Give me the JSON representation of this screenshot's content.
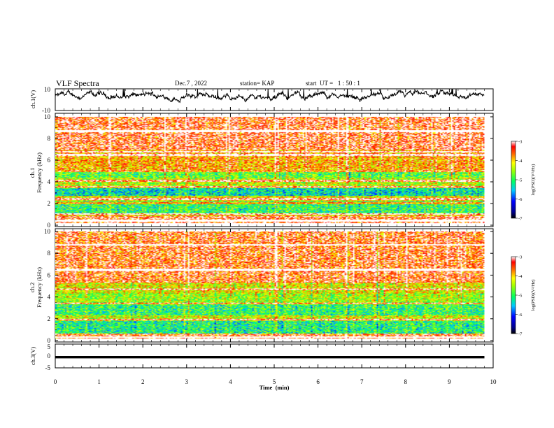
{
  "header": {
    "title": "VLF Spectra",
    "date": "Dec.7 , 2022",
    "station": "station= KAP",
    "start": "start  UT =   1 : 50 : 1"
  },
  "chart_data": [
    {
      "type": "line",
      "panel": "ch1-waveform",
      "ylabel": "ch.1(V)",
      "ylim": [
        -10,
        10
      ],
      "yticks": [
        "10",
        "-10"
      ],
      "xlim": [
        0,
        10
      ],
      "x_end": 9.8,
      "description_values": "noisy waveform roughly between -3 V and 10 V",
      "grid": false
    },
    {
      "type": "heatmap",
      "panel": "ch1-spectrogram",
      "ylabel_line1": "ch.1",
      "ylabel_line2": "Frequency (kHz)",
      "ylim": [
        0,
        10
      ],
      "yticks": [
        "0",
        "2",
        "4",
        "6",
        "8",
        "10"
      ],
      "xlim": [
        0,
        10
      ],
      "x_end": 9.8,
      "colorbar": {
        "label": "log(PSD)(V²/Hz)",
        "ticks": [
          "-3",
          "-4",
          "-5",
          "-6",
          "-7"
        ],
        "range": [
          -7,
          -3
        ]
      },
      "bands_khz": [
        {
          "from": 0,
          "to": 0.8,
          "level": -3.3
        },
        {
          "from": 0.8,
          "to": 1.1,
          "level": -4.0
        },
        {
          "from": 1.1,
          "to": 2.2,
          "level": -5.0
        },
        {
          "from": 2.2,
          "to": 2.7,
          "level": -4.2
        },
        {
          "from": 2.7,
          "to": 3.5,
          "level": -5.3
        },
        {
          "from": 3.5,
          "to": 4.4,
          "level": -4.4
        },
        {
          "from": 4.4,
          "to": 5.1,
          "level": -4.8
        },
        {
          "from": 5.1,
          "to": 7.0,
          "level": -3.8
        },
        {
          "from": 7.0,
          "to": 10,
          "level": -3.3
        }
      ],
      "strong_lines_khz": [
        0.4,
        1.0,
        2.0,
        2.4,
        3.5,
        4.1,
        5.0,
        6.5,
        6.8,
        8.7
      ]
    },
    {
      "type": "heatmap",
      "panel": "ch2-spectrogram",
      "ylabel_line1": "ch.2",
      "ylabel_line2": "Frequency (kHz)",
      "ylim": [
        0,
        10
      ],
      "yticks": [
        "0",
        "2",
        "4",
        "6",
        "8",
        "10"
      ],
      "xlim": [
        0,
        10
      ],
      "x_end": 9.8,
      "colorbar": {
        "label": "log(PSD)(V²/Hz)",
        "ticks": [
          "-3",
          "-4",
          "-5",
          "-6",
          "-7"
        ],
        "range": [
          -7,
          -3
        ]
      },
      "bands_khz": [
        {
          "from": 0,
          "to": 0.6,
          "level": -3.4
        },
        {
          "from": 0.6,
          "to": 1.8,
          "level": -5.1
        },
        {
          "from": 1.8,
          "to": 2.3,
          "level": -4.3
        },
        {
          "from": 2.3,
          "to": 3.3,
          "level": -5.0
        },
        {
          "from": 3.3,
          "to": 4.3,
          "level": -4.5
        },
        {
          "from": 4.3,
          "to": 5.3,
          "level": -4.2
        },
        {
          "from": 5.3,
          "to": 10,
          "level": -3.4
        }
      ],
      "strong_lines_khz": [
        0.3,
        1.9,
        3.4,
        4.7,
        6.5,
        8.8
      ]
    },
    {
      "type": "line",
      "panel": "ch3-waveform",
      "ylabel": "ch.3(V)",
      "ylim": [
        -5,
        5
      ],
      "yticks": [
        "5",
        "0",
        "-5"
      ],
      "xlim": [
        0,
        10
      ],
      "x_end": 9.8,
      "band_v": [
        -1.0,
        0.0
      ],
      "xlabel": "Time  (min)",
      "xticks": [
        "0",
        "1",
        "2",
        "3",
        "4",
        "5",
        "6",
        "7",
        "8",
        "9",
        "10"
      ]
    }
  ]
}
